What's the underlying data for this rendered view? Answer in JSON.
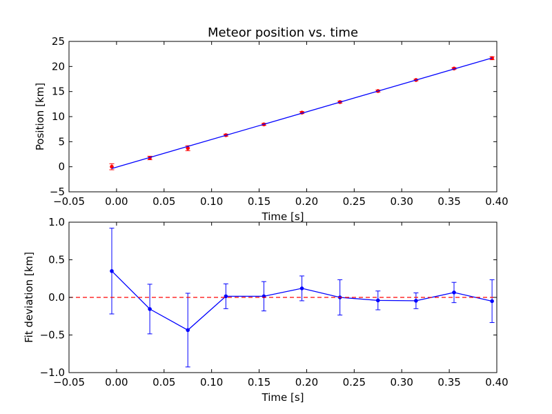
{
  "chart_data": [
    {
      "type": "scatter",
      "title": "Meteor position vs. time",
      "xlabel": "Time [s]",
      "ylabel": "Position [km]",
      "xlim": [
        -0.05,
        0.4
      ],
      "ylim": [
        -5,
        25
      ],
      "xticks": [
        "−0.05",
        "0.00",
        "0.05",
        "0.10",
        "0.15",
        "0.20",
        "0.25",
        "0.30",
        "0.35",
        "0.40"
      ],
      "xtick_values": [
        -0.05,
        0.0,
        0.05,
        0.1,
        0.15,
        0.2,
        0.25,
        0.3,
        0.35,
        0.4
      ],
      "yticks": [
        "−5",
        "0",
        "5",
        "10",
        "15",
        "20",
        "25"
      ],
      "ytick_values": [
        -5,
        0,
        5,
        10,
        15,
        20,
        25
      ],
      "grid": false,
      "series": [
        {
          "kind": "points-with-errorbars",
          "color": "#ff0000",
          "x": [
            -0.005,
            0.035,
            0.075,
            0.115,
            0.155,
            0.195,
            0.235,
            0.275,
            0.315,
            0.355,
            0.395
          ],
          "y": [
            0.0,
            1.75,
            3.7,
            6.3,
            8.45,
            10.8,
            12.9,
            15.1,
            17.3,
            19.6,
            21.65
          ],
          "yerr": [
            0.6,
            0.35,
            0.5,
            0.2,
            0.2,
            0.2,
            0.2,
            0.2,
            0.15,
            0.15,
            0.3
          ]
        },
        {
          "kind": "fit-line",
          "color": "#0000ff",
          "x": [
            -0.005,
            0.395
          ],
          "y": [
            -0.35,
            21.7
          ]
        }
      ]
    },
    {
      "type": "line",
      "xlabel": "Time [s]",
      "ylabel": "Fit deviation [km]",
      "xlim": [
        -0.05,
        0.4
      ],
      "ylim": [
        -1.0,
        1.0
      ],
      "xticks": [
        "−0.05",
        "0.00",
        "0.05",
        "0.10",
        "0.15",
        "0.20",
        "0.25",
        "0.30",
        "0.35",
        "0.40"
      ],
      "xtick_values": [
        -0.05,
        0.0,
        0.05,
        0.1,
        0.15,
        0.2,
        0.25,
        0.3,
        0.35,
        0.4
      ],
      "yticks": [
        "−1.0",
        "−0.5",
        "0.0",
        "0.5",
        "1.0"
      ],
      "ytick_values": [
        -1.0,
        -0.5,
        0.0,
        0.5,
        1.0
      ],
      "grid": false,
      "series": [
        {
          "kind": "line-with-errorbars",
          "color": "#0000ff",
          "x": [
            -0.005,
            0.035,
            0.075,
            0.115,
            0.155,
            0.195,
            0.235,
            0.275,
            0.315,
            0.355,
            0.395
          ],
          "y": [
            0.35,
            -0.155,
            -0.435,
            0.015,
            0.015,
            0.12,
            0.0,
            -0.04,
            -0.045,
            0.065,
            -0.05
          ],
          "yerr": [
            0.57,
            0.33,
            0.49,
            0.165,
            0.195,
            0.165,
            0.235,
            0.125,
            0.105,
            0.135,
            0.285
          ]
        },
        {
          "kind": "reference-line",
          "style": "dashed",
          "color": "#ff0000",
          "y": 0.0
        }
      ]
    }
  ]
}
